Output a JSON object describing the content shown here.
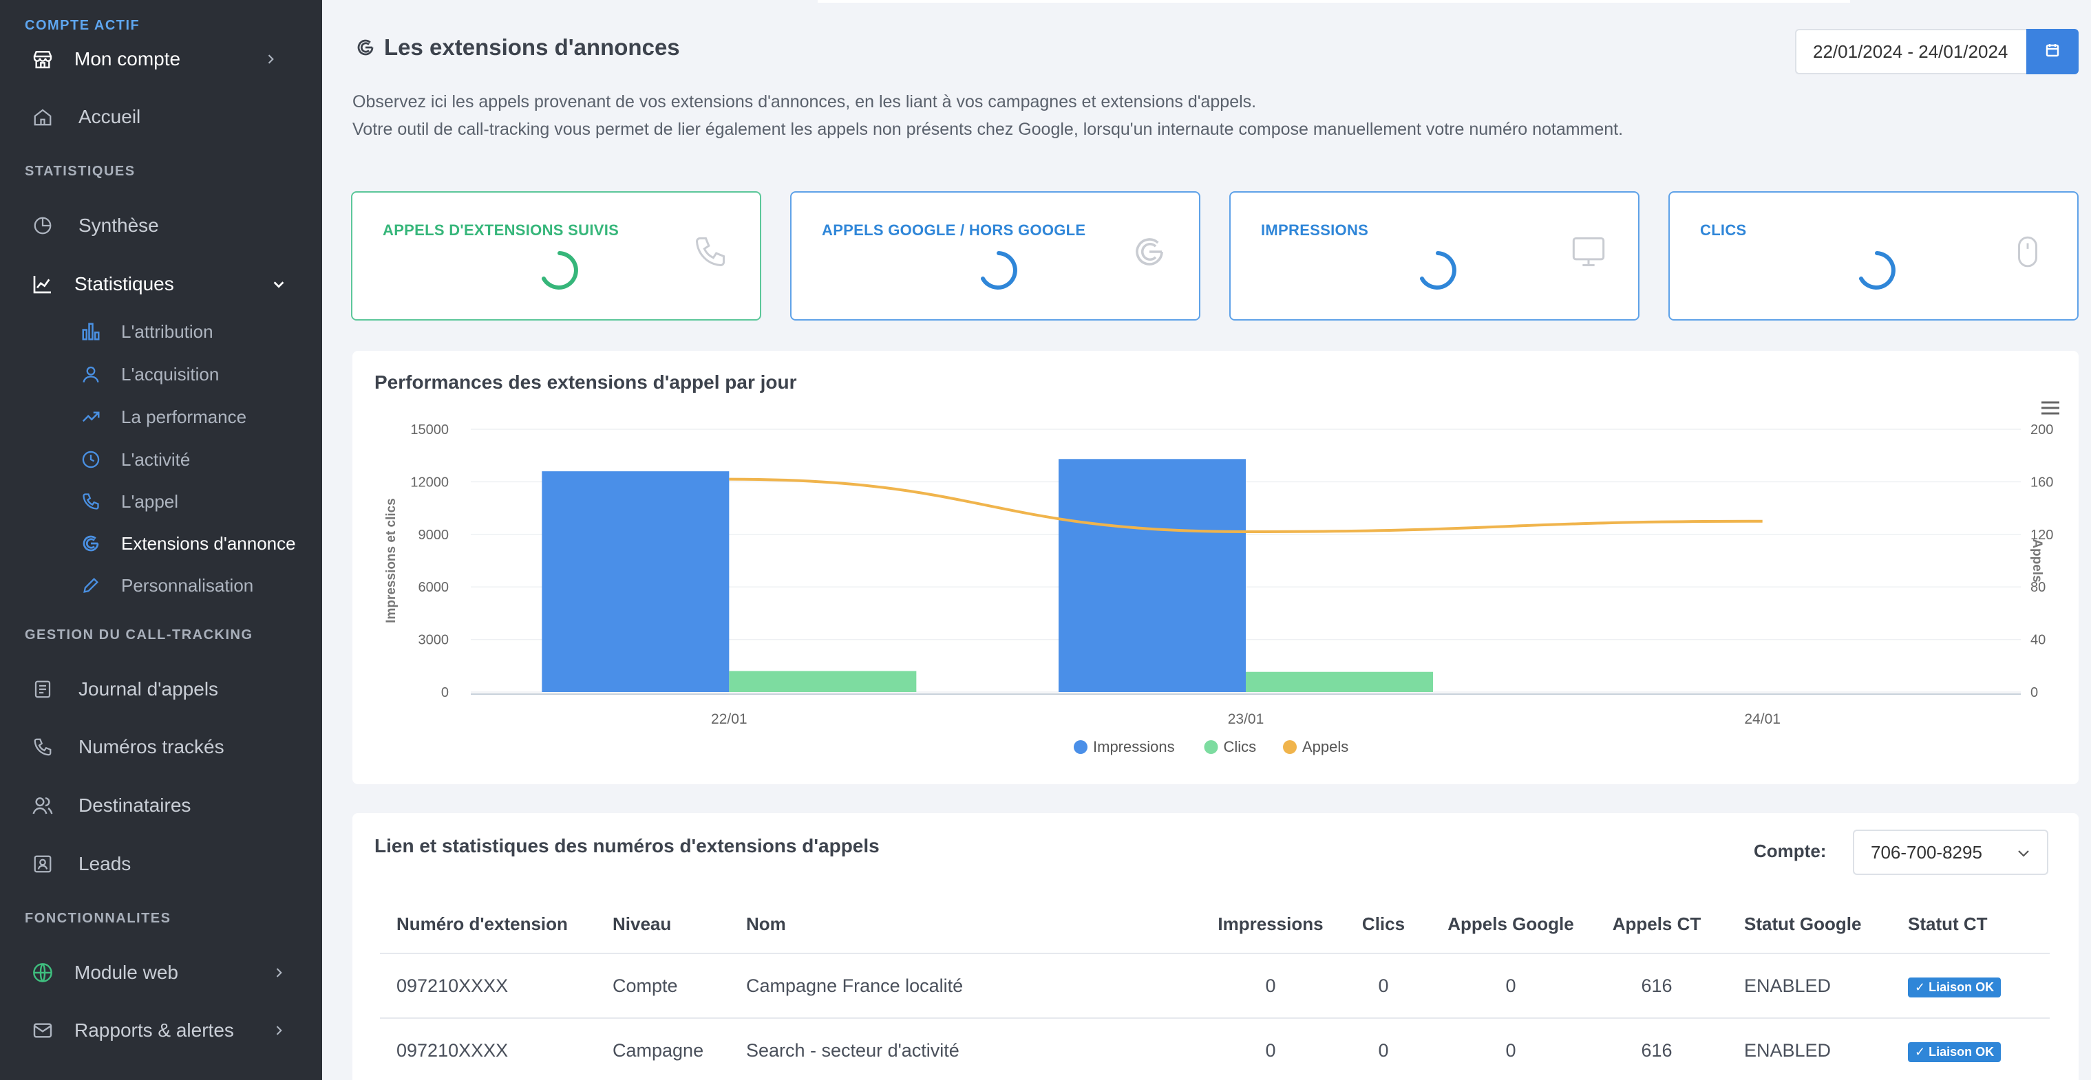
{
  "sidebar": {
    "account_section": "COMPTE ACTIF",
    "account_name": "Mon compte",
    "home": "Accueil",
    "stats_section": "STATISTIQUES",
    "synthese": "Synthèse",
    "statistiques": "Statistiques",
    "sub_items": [
      {
        "label": "L'attribution",
        "icon": "bar-chart-icon"
      },
      {
        "label": "L'acquisition",
        "icon": "user-icon"
      },
      {
        "label": "La performance",
        "icon": "trend-up-icon"
      },
      {
        "label": "L'activité",
        "icon": "clock-icon"
      },
      {
        "label": "L'appel",
        "icon": "phone-icon"
      },
      {
        "label": "Extensions d'annonce",
        "icon": "google-icon"
      },
      {
        "label": "Personnalisation",
        "icon": "pencil-icon"
      }
    ],
    "calltracking_section": "GESTION DU CALL-TRACKING",
    "journal": "Journal d'appels",
    "numeros": "Numéros trackés",
    "destinataires": "Destinataires",
    "leads": "Leads",
    "features_section": "FONCTIONNALITES",
    "module_web": "Module web",
    "rapports": "Rapports & alertes"
  },
  "header": {
    "title": "Les extensions d'annonces",
    "date_range": "22/01/2024 - 24/01/2024",
    "intro_line1": "Observez ici les appels provenant de vos extensions d'annonces, en les liant à vos campagnes et extensions d'appels.",
    "intro_line2": "Votre outil de call-tracking vous permet de lier également les appels non présents chez Google, lorsqu'un internaute compose manuellement votre numéro notamment."
  },
  "kpis": [
    {
      "title": "APPELS D'EXTENSIONS SUIVIS",
      "icon": "phone-icon",
      "color": "#36b67a"
    },
    {
      "title": "APPELS GOOGLE / HORS GOOGLE",
      "icon": "google-icon",
      "color": "#2f86d8"
    },
    {
      "title": "IMPRESSIONS",
      "icon": "monitor-icon",
      "color": "#2f86d8"
    },
    {
      "title": "CLICS",
      "icon": "mouse-icon",
      "color": "#2f86d8"
    }
  ],
  "chart_data": {
    "type": "bar",
    "title": "Performances des extensions d'appel par jour",
    "categories": [
      "22/01",
      "23/01",
      "24/01"
    ],
    "series": [
      {
        "name": "Impressions",
        "type": "bar",
        "axis": "left",
        "color": "#4a8fe8",
        "values": [
          12600,
          13300,
          0
        ]
      },
      {
        "name": "Clics",
        "type": "bar",
        "axis": "left",
        "color": "#7ddca0",
        "values": [
          1200,
          1150,
          0
        ]
      },
      {
        "name": "Appels",
        "type": "line",
        "axis": "right",
        "color": "#f0b44c",
        "values": [
          162,
          122,
          130
        ]
      }
    ],
    "ylabel": "Impressions et clics",
    "y2label": "Appels",
    "ylim": [
      0,
      15000
    ],
    "y2lim": [
      0,
      200
    ],
    "yticks": [
      "0",
      "3000",
      "6000",
      "9000",
      "12000",
      "15000"
    ],
    "y2ticks": [
      "0",
      "40",
      "80",
      "120",
      "160",
      "200"
    ],
    "legend": "bottom-center",
    "grid": true
  },
  "table": {
    "title": "Lien et statistiques des numéros d'extensions d'appels",
    "compte_label": "Compte:",
    "compte_value": "706-700-8295",
    "headers": [
      "Numéro d'extension",
      "Niveau",
      "Nom",
      "Impressions",
      "Clics",
      "Appels Google",
      "Appels CT",
      "Statut Google",
      "Statut CT"
    ],
    "rows": [
      [
        "097210XXXX",
        "Compte",
        "Campagne France localité",
        "0",
        "0",
        "0",
        "616",
        "ENABLED",
        "✓ Liaison OK"
      ],
      [
        "097210XXXX",
        "Campagne",
        "Search - secteur d'activité",
        "0",
        "0",
        "0",
        "616",
        "ENABLED",
        "✓ Liaison OK"
      ]
    ]
  }
}
